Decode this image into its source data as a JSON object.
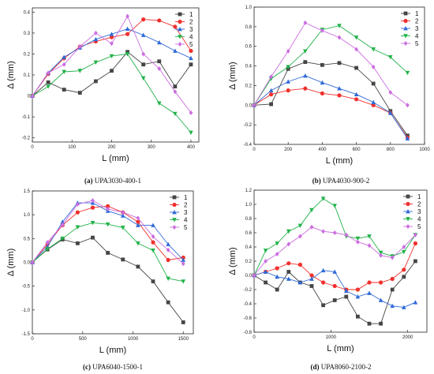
{
  "colors": {
    "1": "#454545",
    "2": "#f0302d",
    "3": "#2f6ad8",
    "4": "#21b24a",
    "5": "#cc6ee0"
  },
  "markers": {
    "1": "square",
    "2": "circle",
    "3": "triangle-up",
    "4": "triangle-down",
    "5": "diamond"
  },
  "chart_data": [
    {
      "type": "line",
      "caption_letter": "(a)",
      "caption_text": " UPA3030-400-1",
      "xlabel": "L (mm)",
      "ylabel": "Δ (mm)",
      "xlim": [
        0,
        420
      ],
      "ylim": [
        -0.22,
        0.42
      ],
      "x_ticks": [
        0,
        100,
        200,
        300,
        400
      ],
      "y_ticks": [
        -0.2,
        -0.1,
        0,
        0.1,
        0.2,
        0.3,
        0.4
      ],
      "y_tick_labels": [
        "-0.2",
        "-0.1",
        "0",
        "0.1",
        "0.2",
        "0.3",
        "0.4"
      ],
      "legend_position": "top-right",
      "series": [
        {
          "name": "1",
          "x": [
            0,
            40,
            80,
            120,
            160,
            200,
            240,
            280,
            320,
            360,
            400
          ],
          "y": [
            0,
            0.065,
            0.03,
            0.015,
            0.07,
            0.12,
            0.21,
            0.15,
            0.165,
            0.045,
            0.15
          ]
        },
        {
          "name": "2",
          "x": [
            0,
            40,
            80,
            120,
            160,
            200,
            240,
            280,
            320,
            360,
            400
          ],
          "y": [
            0,
            0.105,
            0.18,
            0.235,
            0.26,
            0.28,
            0.295,
            0.365,
            0.36,
            0.33,
            0.215
          ]
        },
        {
          "name": "3",
          "x": [
            0,
            40,
            80,
            120,
            160,
            200,
            240,
            280,
            320,
            360,
            400
          ],
          "y": [
            0,
            0.11,
            0.185,
            0.23,
            0.27,
            0.295,
            0.32,
            0.29,
            0.255,
            0.215,
            0.18
          ]
        },
        {
          "name": "4",
          "x": [
            0,
            40,
            80,
            120,
            160,
            200,
            240,
            280,
            320,
            360,
            400
          ],
          "y": [
            0,
            0.045,
            0.115,
            0.12,
            0.16,
            0.19,
            0.2,
            0.085,
            -0.035,
            -0.085,
            -0.175
          ]
        },
        {
          "name": "5",
          "x": [
            0,
            40,
            80,
            120,
            160,
            200,
            240,
            280,
            320,
            360,
            400
          ],
          "y": [
            0,
            0.11,
            0.15,
            0.235,
            0.3,
            0.25,
            0.38,
            0.2,
            0.13,
            0.02,
            -0.08
          ]
        }
      ]
    },
    {
      "type": "line",
      "caption_letter": "(b)",
      "caption_text": " UPA4030-900-2",
      "xlabel": "L (mm)",
      "ylabel": "Δ (mm)",
      "xlim": [
        0,
        1000
      ],
      "ylim": [
        -0.4,
        1.0
      ],
      "x_ticks": [
        0,
        200,
        400,
        600,
        800,
        1000
      ],
      "y_ticks": [
        -0.4,
        -0.2,
        0,
        0.2,
        0.4,
        0.6,
        0.8,
        1.0
      ],
      "y_tick_labels": [
        "-0.4",
        "-0.2",
        "0.0",
        "0.2",
        "0.4",
        "0.6",
        "0.8",
        "1.0"
      ],
      "legend_position": "top-right",
      "series": [
        {
          "name": "1",
          "x": [
            0,
            100,
            200,
            300,
            400,
            500,
            600,
            700,
            800,
            900
          ],
          "y": [
            0,
            0.01,
            0.37,
            0.44,
            0.41,
            0.43,
            0.38,
            0.22,
            -0.06,
            -0.31
          ]
        },
        {
          "name": "2",
          "x": [
            0,
            100,
            200,
            300,
            400,
            500,
            600,
            700,
            800,
            900
          ],
          "y": [
            0,
            0.11,
            0.15,
            0.17,
            0.12,
            0.1,
            0.06,
            0.0,
            -0.08,
            -0.33
          ]
        },
        {
          "name": "3",
          "x": [
            0,
            100,
            200,
            300,
            400,
            500,
            600,
            700,
            800,
            900
          ],
          "y": [
            0,
            0.15,
            0.24,
            0.3,
            0.23,
            0.17,
            0.11,
            0.03,
            -0.08,
            -0.34
          ]
        },
        {
          "name": "4",
          "x": [
            0,
            100,
            200,
            300,
            400,
            500,
            600,
            700,
            800,
            900
          ],
          "y": [
            0,
            0.27,
            0.39,
            0.55,
            0.77,
            0.81,
            0.69,
            0.57,
            0.49,
            0.33
          ]
        },
        {
          "name": "5",
          "x": [
            0,
            100,
            200,
            300,
            400,
            500,
            600,
            700,
            800,
            900
          ],
          "y": [
            0,
            0.29,
            0.55,
            0.84,
            0.76,
            0.69,
            0.57,
            0.39,
            0.13,
            0.0
          ]
        }
      ]
    },
    {
      "type": "line",
      "caption_letter": "(c)",
      "caption_text": " UPA6040-1500-1",
      "xlabel": "L (mm)",
      "ylabel": "Δ (mm)",
      "xlim": [
        0,
        1600
      ],
      "ylim": [
        -1.5,
        1.5
      ],
      "x_ticks": [
        0,
        500,
        1000,
        1500
      ],
      "y_ticks": [
        -1.5,
        -1.0,
        -0.5,
        0,
        0.5,
        1.0,
        1.5
      ],
      "y_tick_labels": [
        "-1.5",
        "-1.0",
        "-0.5",
        "0.0",
        "0.5",
        "1.0",
        "1.5"
      ],
      "legend_position": "top-right",
      "series": [
        {
          "name": "1",
          "x": [
            0,
            150,
            300,
            450,
            600,
            750,
            900,
            1050,
            1200,
            1350,
            1500
          ],
          "y": [
            0,
            0.27,
            0.48,
            0.4,
            0.52,
            0.2,
            0.06,
            -0.09,
            -0.4,
            -0.84,
            -1.26
          ]
        },
        {
          "name": "2",
          "x": [
            0,
            150,
            300,
            450,
            600,
            750,
            900,
            1050,
            1200,
            1350,
            1500
          ],
          "y": [
            0,
            0.38,
            0.78,
            1.05,
            1.15,
            1.18,
            1.05,
            0.85,
            0.42,
            0.05,
            0.1
          ]
        },
        {
          "name": "3",
          "x": [
            0,
            150,
            300,
            450,
            600,
            750,
            900,
            1050,
            1200,
            1350,
            1500
          ],
          "y": [
            0,
            0.33,
            0.85,
            1.25,
            1.25,
            1.08,
            0.98,
            0.78,
            0.78,
            0.38,
            0.05
          ]
        },
        {
          "name": "4",
          "x": [
            0,
            150,
            300,
            450,
            600,
            750,
            900,
            1050,
            1200,
            1350,
            1500
          ],
          "y": [
            0,
            0.28,
            0.5,
            0.74,
            0.83,
            0.8,
            0.73,
            0.4,
            0.25,
            -0.34,
            -0.4
          ]
        },
        {
          "name": "5",
          "x": [
            0,
            150,
            300,
            450,
            600,
            750,
            900,
            1050,
            1200,
            1350,
            1500
          ],
          "y": [
            0,
            0.42,
            0.79,
            1.22,
            1.3,
            1.12,
            1.05,
            0.93,
            0.54,
            0.26,
            -0.03
          ]
        }
      ]
    },
    {
      "type": "line",
      "caption_letter": "(d)",
      "caption_text": " UPA8060-2100-2",
      "xlabel": "L (mm)",
      "ylabel": "Δ (mm)",
      "xlim": [
        0,
        2250
      ],
      "ylim": [
        -0.8,
        1.2
      ],
      "x_ticks": [
        0,
        1000,
        2000
      ],
      "y_ticks": [
        -0.8,
        -0.6,
        -0.4,
        -0.2,
        0,
        0.2,
        0.4,
        0.6,
        0.8,
        1.0,
        1.2
      ],
      "y_tick_labels": [
        "-0.8",
        "-0.6",
        "-0.4",
        "-0.2",
        "0.0",
        "0.2",
        "0.4",
        "0.6",
        "0.8",
        "1.0",
        "1.2"
      ],
      "legend_position": "top-right",
      "series": [
        {
          "name": "1",
          "x": [
            0,
            150,
            300,
            450,
            600,
            750,
            900,
            1050,
            1200,
            1350,
            1500,
            1650,
            1800,
            1950,
            2100
          ],
          "y": [
            0,
            -0.1,
            -0.2,
            0.05,
            -0.1,
            -0.15,
            -0.42,
            -0.35,
            -0.3,
            -0.58,
            -0.68,
            -0.68,
            -0.2,
            -0.02,
            0.2
          ]
        },
        {
          "name": "2",
          "x": [
            0,
            150,
            300,
            450,
            600,
            750,
            900,
            1050,
            1200,
            1350,
            1500,
            1650,
            1800,
            1950,
            2100
          ],
          "y": [
            0,
            0.05,
            0.1,
            0.17,
            0.15,
            0.0,
            -0.1,
            -0.15,
            -0.2,
            -0.2,
            -0.1,
            -0.1,
            -0.05,
            0.08,
            0.45
          ]
        },
        {
          "name": "3",
          "x": [
            0,
            150,
            300,
            450,
            600,
            750,
            900,
            1050,
            1200,
            1350,
            1500,
            1650,
            1800,
            1950,
            2100
          ],
          "y": [
            0,
            0.05,
            -0.02,
            -0.05,
            -0.1,
            -0.05,
            0.07,
            0.05,
            -0.22,
            -0.3,
            -0.25,
            -0.35,
            -0.43,
            -0.45,
            -0.38
          ]
        },
        {
          "name": "4",
          "x": [
            0,
            150,
            300,
            450,
            600,
            750,
            900,
            1050,
            1200,
            1350,
            1500,
            1650,
            1800,
            1950,
            2100
          ],
          "y": [
            0,
            0.35,
            0.45,
            0.62,
            0.7,
            0.92,
            1.08,
            0.98,
            0.55,
            0.52,
            0.55,
            0.32,
            0.27,
            0.33,
            0.57
          ]
        },
        {
          "name": "5",
          "x": [
            0,
            150,
            300,
            450,
            600,
            750,
            900,
            1050,
            1200,
            1350,
            1500,
            1650,
            1800,
            1950,
            2100
          ],
          "y": [
            0,
            0.2,
            0.3,
            0.44,
            0.55,
            0.68,
            0.62,
            0.6,
            0.57,
            0.47,
            0.42,
            0.28,
            0.25,
            0.4,
            0.57
          ]
        }
      ]
    }
  ]
}
